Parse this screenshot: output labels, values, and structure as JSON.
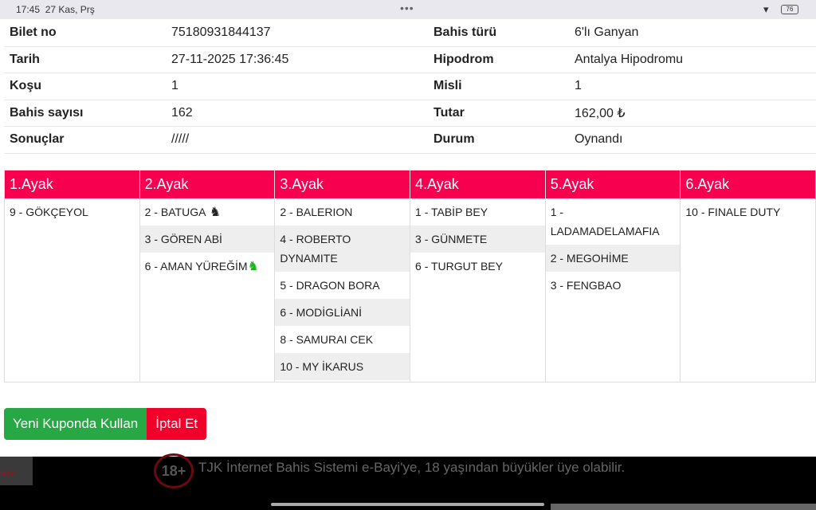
{
  "status_bar": {
    "time": "17:45",
    "date": "27 Kas, Prş",
    "battery": "76"
  },
  "info": {
    "rows": [
      {
        "label": "Bilet no",
        "value": "75180931844137",
        "label2": "Bahis türü",
        "value2": "6'lı Ganyan"
      },
      {
        "label": "Tarih",
        "value": "27-11-2025 17:36:45",
        "label2": "Hipodrom",
        "value2": "Antalya Hipodromu"
      },
      {
        "label": "Koşu",
        "value": "1",
        "label2": "Misli",
        "value2": "1"
      },
      {
        "label": "Bahis sayısı",
        "value": "162",
        "label2": "Tutar",
        "value2": "162,00 ₺"
      },
      {
        "label": "Sonuçlar",
        "value": "/////",
        "label2": "Durum",
        "value2": "Oynandı"
      }
    ]
  },
  "legs": [
    {
      "title": "1.Ayak",
      "horses": [
        "9 - GÖKÇEYOL"
      ]
    },
    {
      "title": "2.Ayak",
      "horses": [
        "2 - BATUGA",
        "3 - GÖREN ABİ",
        "6 - AMAN YÜREĞİM"
      ]
    },
    {
      "title": "3.Ayak",
      "horses": [
        "2 - BALERION",
        "4 - ROBERTO DYNAMITE",
        "5 - DRAGON BORA",
        "6 - MODİGLİANİ",
        "8 - SAMURAI CEK",
        "10 - MY İKARUS"
      ]
    },
    {
      "title": "4.Ayak",
      "horses": [
        "1 - TABİP BEY",
        "3 - GÜNMETE",
        "6 - TURGUT BEY"
      ]
    },
    {
      "title": "5.Ayak",
      "horses": [
        "1 - LADAMADELAMAFIA",
        "2 - MEGOHİME",
        "3 - FENGBAO"
      ]
    },
    {
      "title": "6.Ayak",
      "horses": [
        "10 - FINALE DUTY"
      ]
    }
  ],
  "actions": {
    "reuse": "Yeni Kuponda Kullan",
    "cancel": "İptal Et"
  },
  "footer": {
    "age": "18+",
    "text": "TJK İnternet Bahis Sistemi e-Bayi'ye, 18 yaşından büyükler üye olabilir.",
    "logo": "lıdır."
  },
  "colors": {
    "header": "#f7004f",
    "green": "#28a745",
    "red": "#f2002c"
  }
}
